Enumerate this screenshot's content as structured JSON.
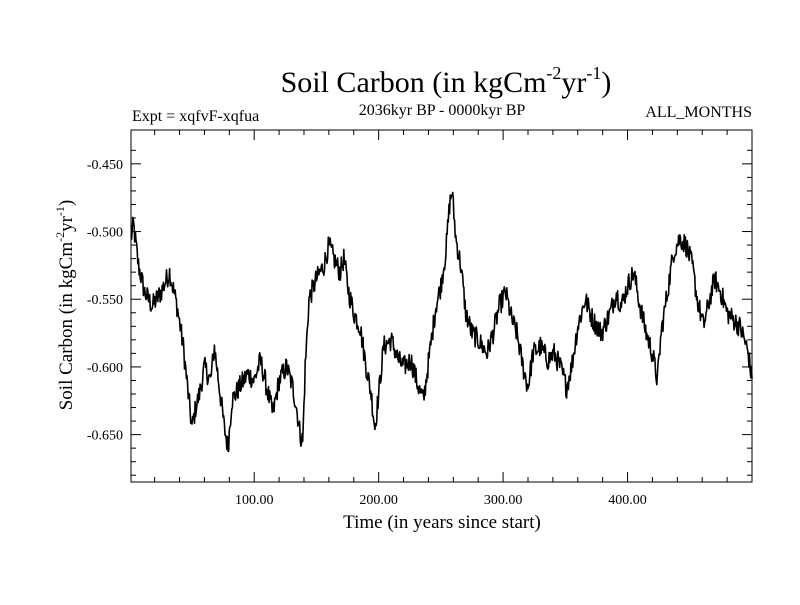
{
  "chart_data": {
    "type": "line",
    "title": {
      "main": "Soil Carbon (in kgCm",
      "exp1": "-2",
      "mid": "yr",
      "exp2": "-1",
      "end": ")"
    },
    "subtitle_left": "Expt = xqfvF-xqfua",
    "subtitle_center": "2036kyr BP - 0000kyr BP",
    "subtitle_right": "ALL_MONTHS",
    "xlabel": "Time (in years since start)",
    "ylabel": {
      "main": "Soil Carbon (in kgCm",
      "exp1": "-2",
      "mid": "yr",
      "exp2": "-1",
      "end": ")"
    },
    "xlim": [
      1,
      500
    ],
    "ylim": [
      -0.685,
      -0.425
    ],
    "x_ticks": [
      100,
      200,
      300,
      400
    ],
    "x_tick_labels": [
      "100.00",
      "200.00",
      "300.00",
      "400.00"
    ],
    "y_ticks": [
      -0.45,
      -0.5,
      -0.55,
      -0.6,
      -0.65
    ],
    "y_tick_labels": [
      "-0.450",
      "-0.500",
      "-0.550",
      "-0.600",
      "-0.650"
    ],
    "series": [
      {
        "name": "Soil Carbon",
        "color": "#000000",
        "anchors": [
          [
            1,
            -0.505
          ],
          [
            3,
            -0.495
          ],
          [
            7,
            -0.525
          ],
          [
            12,
            -0.545
          ],
          [
            18,
            -0.555
          ],
          [
            25,
            -0.545
          ],
          [
            32,
            -0.53
          ],
          [
            38,
            -0.555
          ],
          [
            43,
            -0.585
          ],
          [
            47,
            -0.62
          ],
          [
            50,
            -0.645
          ],
          [
            53,
            -0.63
          ],
          [
            56,
            -0.62
          ],
          [
            60,
            -0.6
          ],
          [
            65,
            -0.61
          ],
          [
            68,
            -0.585
          ],
          [
            72,
            -0.615
          ],
          [
            76,
            -0.645
          ],
          [
            79,
            -0.66
          ],
          [
            82,
            -0.625
          ],
          [
            88,
            -0.615
          ],
          [
            95,
            -0.605
          ],
          [
            100,
            -0.61
          ],
          [
            105,
            -0.595
          ],
          [
            110,
            -0.615
          ],
          [
            115,
            -0.635
          ],
          [
            120,
            -0.61
          ],
          [
            126,
            -0.6
          ],
          [
            131,
            -0.615
          ],
          [
            134,
            -0.63
          ],
          [
            137,
            -0.65
          ],
          [
            139,
            -0.655
          ],
          [
            141,
            -0.6
          ],
          [
            144,
            -0.55
          ],
          [
            150,
            -0.535
          ],
          [
            156,
            -0.525
          ],
          [
            160,
            -0.51
          ],
          [
            164,
            -0.52
          ],
          [
            169,
            -0.53
          ],
          [
            172,
            -0.52
          ],
          [
            176,
            -0.545
          ],
          [
            180,
            -0.56
          ],
          [
            185,
            -0.57
          ],
          [
            190,
            -0.6
          ],
          [
            194,
            -0.62
          ],
          [
            197,
            -0.645
          ],
          [
            200,
            -0.62
          ],
          [
            204,
            -0.585
          ],
          [
            210,
            -0.58
          ],
          [
            216,
            -0.595
          ],
          [
            220,
            -0.6
          ],
          [
            226,
            -0.595
          ],
          [
            232,
            -0.615
          ],
          [
            236,
            -0.625
          ],
          [
            241,
            -0.59
          ],
          [
            246,
            -0.555
          ],
          [
            250,
            -0.54
          ],
          [
            254,
            -0.515
          ],
          [
            257,
            -0.48
          ],
          [
            259,
            -0.47
          ],
          [
            262,
            -0.505
          ],
          [
            266,
            -0.525
          ],
          [
            270,
            -0.56
          ],
          [
            275,
            -0.575
          ],
          [
            280,
            -0.58
          ],
          [
            287,
            -0.59
          ],
          [
            292,
            -0.575
          ],
          [
            297,
            -0.555
          ],
          [
            302,
            -0.545
          ],
          [
            307,
            -0.565
          ],
          [
            311,
            -0.575
          ],
          [
            316,
            -0.6
          ],
          [
            320,
            -0.615
          ],
          [
            324,
            -0.59
          ],
          [
            330,
            -0.585
          ],
          [
            336,
            -0.595
          ],
          [
            341,
            -0.59
          ],
          [
            346,
            -0.6
          ],
          [
            351,
            -0.615
          ],
          [
            355,
            -0.6
          ],
          [
            360,
            -0.57
          ],
          [
            366,
            -0.55
          ],
          [
            372,
            -0.565
          ],
          [
            379,
            -0.575
          ],
          [
            386,
            -0.56
          ],
          [
            391,
            -0.545
          ],
          [
            395,
            -0.555
          ],
          [
            400,
            -0.54
          ],
          [
            405,
            -0.53
          ],
          [
            410,
            -0.555
          ],
          [
            415,
            -0.575
          ],
          [
            420,
            -0.59
          ],
          [
            424,
            -0.61
          ],
          [
            427,
            -0.575
          ],
          [
            432,
            -0.545
          ],
          [
            437,
            -0.515
          ],
          [
            442,
            -0.505
          ],
          [
            447,
            -0.51
          ],
          [
            452,
            -0.525
          ],
          [
            456,
            -0.55
          ],
          [
            461,
            -0.57
          ],
          [
            466,
            -0.55
          ],
          [
            470,
            -0.535
          ],
          [
            475,
            -0.545
          ],
          [
            480,
            -0.56
          ],
          [
            485,
            -0.565
          ],
          [
            490,
            -0.57
          ],
          [
            494,
            -0.58
          ],
          [
            497,
            -0.59
          ],
          [
            500,
            -0.61
          ]
        ]
      }
    ]
  }
}
